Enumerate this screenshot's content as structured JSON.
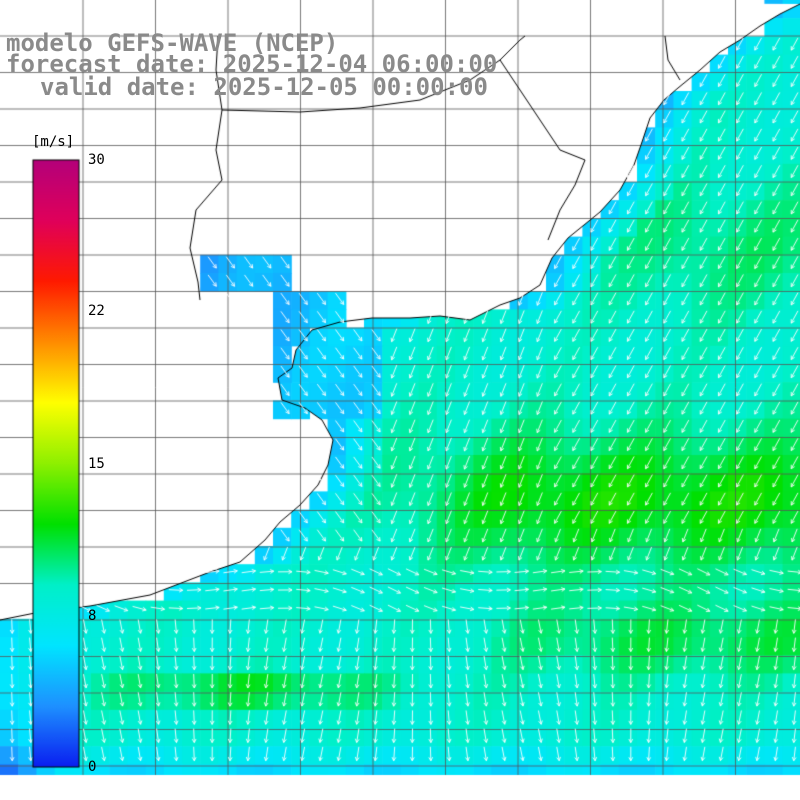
{
  "title": {
    "model": "modelo GEFS-WAVE (NCEP)",
    "forecast": "forecast date: 2025-12-04 06:00:00",
    "valid": "valid date: 2025-12-05 00:00:00"
  },
  "colorbar": {
    "unit": "[m/s]",
    "ticks": [
      {
        "label": "30",
        "value": 30
      },
      {
        "label": "22",
        "value": 22
      },
      {
        "label": "15",
        "value": 15
      },
      {
        "label": "8",
        "value": 8
      },
      {
        "label": "0",
        "value": 0
      }
    ],
    "range": [
      0,
      30
    ],
    "colors": [
      "#0a1ef0",
      "#1e90ff",
      "#00e5ff",
      "#00f0c8",
      "#00e000",
      "#8ef000",
      "#ffff00",
      "#ff8c00",
      "#ff1a00",
      "#e0005a",
      "#b4007a"
    ]
  },
  "colors": {
    "grid": "#555555",
    "coast": "#000000",
    "land": "#ffffff",
    "arrow": "#ffffff"
  }
}
